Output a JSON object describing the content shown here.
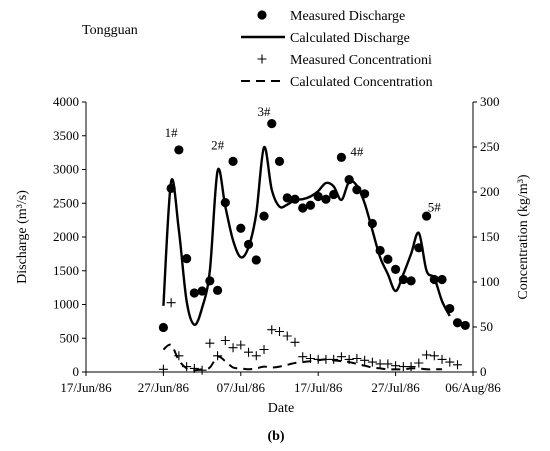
{
  "chart_data": {
    "type": "line",
    "station": "Tongguan",
    "caption": "(b)",
    "xlabel": "Date",
    "ylabel_left": "Discharge (m³/s)",
    "ylabel_right": "Concentration (kg/m³)",
    "x_domain": [
      "1986-06-17",
      "1986-08-06"
    ],
    "x_ticks": [
      "17/Jun/86",
      "27/Jun/86",
      "07/Jul/86",
      "17/Jul/86",
      "27/Jul/86",
      "06/Aug/86"
    ],
    "ylim_left": [
      0,
      4000
    ],
    "yticks_left": [
      0,
      500,
      1000,
      1500,
      2000,
      2500,
      3000,
      3500,
      4000
    ],
    "ylim_right": [
      0,
      300
    ],
    "yticks_right": [
      0,
      50,
      100,
      150,
      200,
      250,
      300
    ],
    "legend": {
      "placement": "top",
      "entries": [
        {
          "label": "Measured Discharge",
          "symbol": "dot"
        },
        {
          "label": "Calculated Discharge",
          "symbol": "solid"
        },
        {
          "label": "Measured Concentrationi",
          "symbol": "plus"
        },
        {
          "label": "Calculated Concentration",
          "symbol": "dashed"
        }
      ]
    },
    "annotations": [
      {
        "text": "1#",
        "x": "1986-06-28",
        "y": 3480
      },
      {
        "text": "2#",
        "x": "1986-07-04",
        "y": 3300
      },
      {
        "text": "3#",
        "x": "1986-07-10",
        "y": 3790
      },
      {
        "text": "4#",
        "x": "1986-07-22",
        "y": 3200
      },
      {
        "text": "5#",
        "x": "1986-08-01",
        "y": 2380
      }
    ],
    "series": [
      {
        "name": "Measured Discharge",
        "kind": "scatter",
        "axis": "left",
        "points": [
          [
            "1986-06-27",
            660
          ],
          [
            "1986-06-28",
            2720
          ],
          [
            "1986-06-29",
            3290
          ],
          [
            "1986-06-30",
            1680
          ],
          [
            "1986-07-01",
            1170
          ],
          [
            "1986-07-02",
            1200
          ],
          [
            "1986-07-03",
            1350
          ],
          [
            "1986-07-04",
            1210
          ],
          [
            "1986-07-05",
            2510
          ],
          [
            "1986-07-06",
            3120
          ],
          [
            "1986-07-07",
            2130
          ],
          [
            "1986-07-08",
            1890
          ],
          [
            "1986-07-09",
            1660
          ],
          [
            "1986-07-10",
            2310
          ],
          [
            "1986-07-11",
            3680
          ],
          [
            "1986-07-12",
            3120
          ],
          [
            "1986-07-13",
            2580
          ],
          [
            "1986-07-14",
            2560
          ],
          [
            "1986-07-15",
            2430
          ],
          [
            "1986-07-16",
            2470
          ],
          [
            "1986-07-17",
            2600
          ],
          [
            "1986-07-18",
            2560
          ],
          [
            "1986-07-19",
            2630
          ],
          [
            "1986-07-20",
            3180
          ],
          [
            "1986-07-21",
            2850
          ],
          [
            "1986-07-22",
            2700
          ],
          [
            "1986-07-23",
            2640
          ],
          [
            "1986-07-24",
            2200
          ],
          [
            "1986-07-25",
            1800
          ],
          [
            "1986-07-26",
            1670
          ],
          [
            "1986-07-27",
            1520
          ],
          [
            "1986-07-28",
            1370
          ],
          [
            "1986-07-29",
            1350
          ],
          [
            "1986-07-30",
            1840
          ],
          [
            "1986-07-31",
            2310
          ],
          [
            "1986-08-01",
            1370
          ],
          [
            "1986-08-02",
            1370
          ],
          [
            "1986-08-03",
            940
          ],
          [
            "1986-08-04",
            730
          ],
          [
            "1986-08-05",
            690
          ]
        ]
      },
      {
        "name": "Calculated Discharge",
        "kind": "line",
        "axis": "left",
        "dash": "solid",
        "points": [
          [
            "1986-06-27",
            980
          ],
          [
            "1986-06-28",
            2820
          ],
          [
            "1986-06-29",
            2100
          ],
          [
            "1986-06-30",
            1050
          ],
          [
            "1986-07-01",
            700
          ],
          [
            "1986-07-02",
            950
          ],
          [
            "1986-07-03",
            1500
          ],
          [
            "1986-07-04",
            2980
          ],
          [
            "1986-07-05",
            2450
          ],
          [
            "1986-07-06",
            1950
          ],
          [
            "1986-07-07",
            1700
          ],
          [
            "1986-07-08",
            1850
          ],
          [
            "1986-07-09",
            2350
          ],
          [
            "1986-07-10",
            3330
          ],
          [
            "1986-07-11",
            2700
          ],
          [
            "1986-07-12",
            2450
          ],
          [
            "1986-07-13",
            2480
          ],
          [
            "1986-07-14",
            2550
          ],
          [
            "1986-07-15",
            2560
          ],
          [
            "1986-07-16",
            2600
          ],
          [
            "1986-07-17",
            2680
          ],
          [
            "1986-07-18",
            2800
          ],
          [
            "1986-07-19",
            2750
          ],
          [
            "1986-07-20",
            2550
          ],
          [
            "1986-07-21",
            2820
          ],
          [
            "1986-07-22",
            2760
          ],
          [
            "1986-07-23",
            2500
          ],
          [
            "1986-07-24",
            2100
          ],
          [
            "1986-07-25",
            1700
          ],
          [
            "1986-07-26",
            1450
          ],
          [
            "1986-07-27",
            1200
          ],
          [
            "1986-07-28",
            1450
          ],
          [
            "1986-07-29",
            1750
          ],
          [
            "1986-07-30",
            2060
          ],
          [
            "1986-07-31",
            1500
          ],
          [
            "1986-08-01",
            1390
          ],
          [
            "1986-08-02",
            1050
          ],
          [
            "1986-08-03",
            830
          ]
        ]
      },
      {
        "name": "Measured Concentrationi",
        "kind": "scatter",
        "axis": "right",
        "points": [
          [
            "1986-06-27",
            3
          ],
          [
            "1986-06-28",
            77
          ],
          [
            "1986-06-29",
            18
          ],
          [
            "1986-06-30",
            6
          ],
          [
            "1986-07-01",
            4
          ],
          [
            "1986-07-02",
            2
          ],
          [
            "1986-07-03",
            32
          ],
          [
            "1986-07-04",
            18
          ],
          [
            "1986-07-05",
            35
          ],
          [
            "1986-07-06",
            27
          ],
          [
            "1986-07-07",
            30
          ],
          [
            "1986-07-08",
            22
          ],
          [
            "1986-07-09",
            18
          ],
          [
            "1986-07-10",
            25
          ],
          [
            "1986-07-11",
            47
          ],
          [
            "1986-07-12",
            45
          ],
          [
            "1986-07-13",
            40
          ],
          [
            "1986-07-14",
            33
          ],
          [
            "1986-07-15",
            17
          ],
          [
            "1986-07-16",
            15
          ],
          [
            "1986-07-17",
            14
          ],
          [
            "1986-07-18",
            14
          ],
          [
            "1986-07-19",
            14
          ],
          [
            "1986-07-20",
            17
          ],
          [
            "1986-07-21",
            14
          ],
          [
            "1986-07-22",
            15
          ],
          [
            "1986-07-23",
            13
          ],
          [
            "1986-07-24",
            11
          ],
          [
            "1986-07-25",
            9
          ],
          [
            "1986-07-26",
            9
          ],
          [
            "1986-07-27",
            7
          ],
          [
            "1986-07-28",
            6
          ],
          [
            "1986-07-29",
            6
          ],
          [
            "1986-07-30",
            10
          ],
          [
            "1986-07-31",
            19
          ],
          [
            "1986-08-01",
            18
          ],
          [
            "1986-08-02",
            14
          ],
          [
            "1986-08-03",
            11
          ],
          [
            "1986-08-04",
            8
          ]
        ]
      },
      {
        "name": "Calculated Concentration",
        "kind": "line",
        "axis": "right",
        "dash": "dashed",
        "points": [
          [
            "1986-06-27",
            25
          ],
          [
            "1986-06-28",
            30
          ],
          [
            "1986-06-29",
            13
          ],
          [
            "1986-06-30",
            4
          ],
          [
            "1986-07-01",
            2
          ],
          [
            "1986-07-02",
            3
          ],
          [
            "1986-07-03",
            5
          ],
          [
            "1986-07-04",
            17
          ],
          [
            "1986-07-05",
            12
          ],
          [
            "1986-07-06",
            5
          ],
          [
            "1986-07-07",
            4
          ],
          [
            "1986-07-08",
            3
          ],
          [
            "1986-07-09",
            4
          ],
          [
            "1986-07-10",
            6
          ],
          [
            "1986-07-11",
            5
          ],
          [
            "1986-07-12",
            6
          ],
          [
            "1986-07-13",
            8
          ],
          [
            "1986-07-14",
            10
          ],
          [
            "1986-07-15",
            11
          ],
          [
            "1986-07-16",
            12
          ],
          [
            "1986-07-17",
            13
          ],
          [
            "1986-07-18",
            14
          ],
          [
            "1986-07-19",
            13
          ],
          [
            "1986-07-20",
            12
          ],
          [
            "1986-07-21",
            11
          ],
          [
            "1986-07-22",
            9
          ],
          [
            "1986-07-23",
            7
          ],
          [
            "1986-07-24",
            5
          ],
          [
            "1986-07-25",
            4
          ],
          [
            "1986-07-26",
            3
          ],
          [
            "1986-07-27",
            3
          ],
          [
            "1986-07-28",
            3
          ],
          [
            "1986-07-29",
            4
          ],
          [
            "1986-07-30",
            4
          ],
          [
            "1986-07-31",
            3
          ],
          [
            "1986-08-01",
            3
          ],
          [
            "1986-08-02",
            3
          ]
        ]
      }
    ]
  }
}
